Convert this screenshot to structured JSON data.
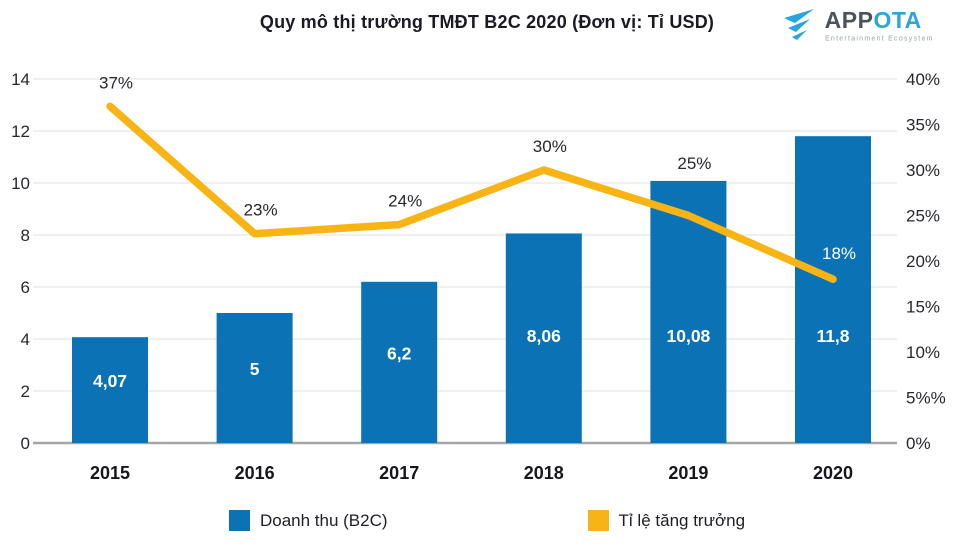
{
  "header": {
    "title": "Quy mô thị trường TMĐT B2C 2020 (Đơn vị: Tỉ USD)"
  },
  "logo": {
    "brand_prefix": "APP",
    "brand_suffix": "OTA",
    "tagline": "Entertainment Ecosystem"
  },
  "chart_data": {
    "type": "bar+line",
    "title": "Quy mô thị trường TMĐT B2C 2020 (Đơn vị: Tỉ USD)",
    "categories": [
      "2015",
      "2016",
      "2017",
      "2018",
      "2019",
      "2020"
    ],
    "series": [
      {
        "name": "Doanh thu (B2C)",
        "type": "bar",
        "axis": "left",
        "values": [
          4.07,
          5,
          6.2,
          8.06,
          10.08,
          11.8
        ],
        "value_labels": [
          "4,07",
          "5",
          "6,2",
          "8,06",
          "10,08",
          "11,8"
        ],
        "color": "#0b72b6"
      },
      {
        "name": "Tỉ lệ tăng trưởng",
        "type": "line",
        "axis": "right",
        "values": [
          37,
          23,
          24,
          30,
          25,
          18
        ],
        "value_labels": [
          "37%",
          "23%",
          "24%",
          "30%",
          "25%",
          "18%"
        ],
        "color": "#f8b414"
      }
    ],
    "left_axis": {
      "min": 0,
      "max": 14,
      "step": 2,
      "ticks": [
        "0",
        "2",
        "4",
        "6",
        "8",
        "10",
        "12",
        "14"
      ]
    },
    "right_axis": {
      "min": 0,
      "max": 40,
      "step": 5,
      "ticks": [
        "0%",
        "5%%",
        "10%",
        "15%",
        "20%",
        "25%",
        "30%",
        "35%",
        "40%"
      ]
    },
    "grid": true,
    "legend_position": "bottom"
  },
  "legend": {
    "items": [
      {
        "label": "Doanh thu (B2C)",
        "color": "#0b72b6"
      },
      {
        "label": "Tỉ lệ tăng trưởng",
        "color": "#f8b414"
      }
    ]
  },
  "colors": {
    "bar": "#0b72b6",
    "line": "#f8b414",
    "title_text": "#191a23",
    "tick_text": "#27272f",
    "category_text": "#16161e",
    "bar_label_text": "#ffffff",
    "grid": "#ececec",
    "axis": "#a6a6a6",
    "logo_dark": "#4a545e",
    "logo_blue": "#29a4dd"
  }
}
